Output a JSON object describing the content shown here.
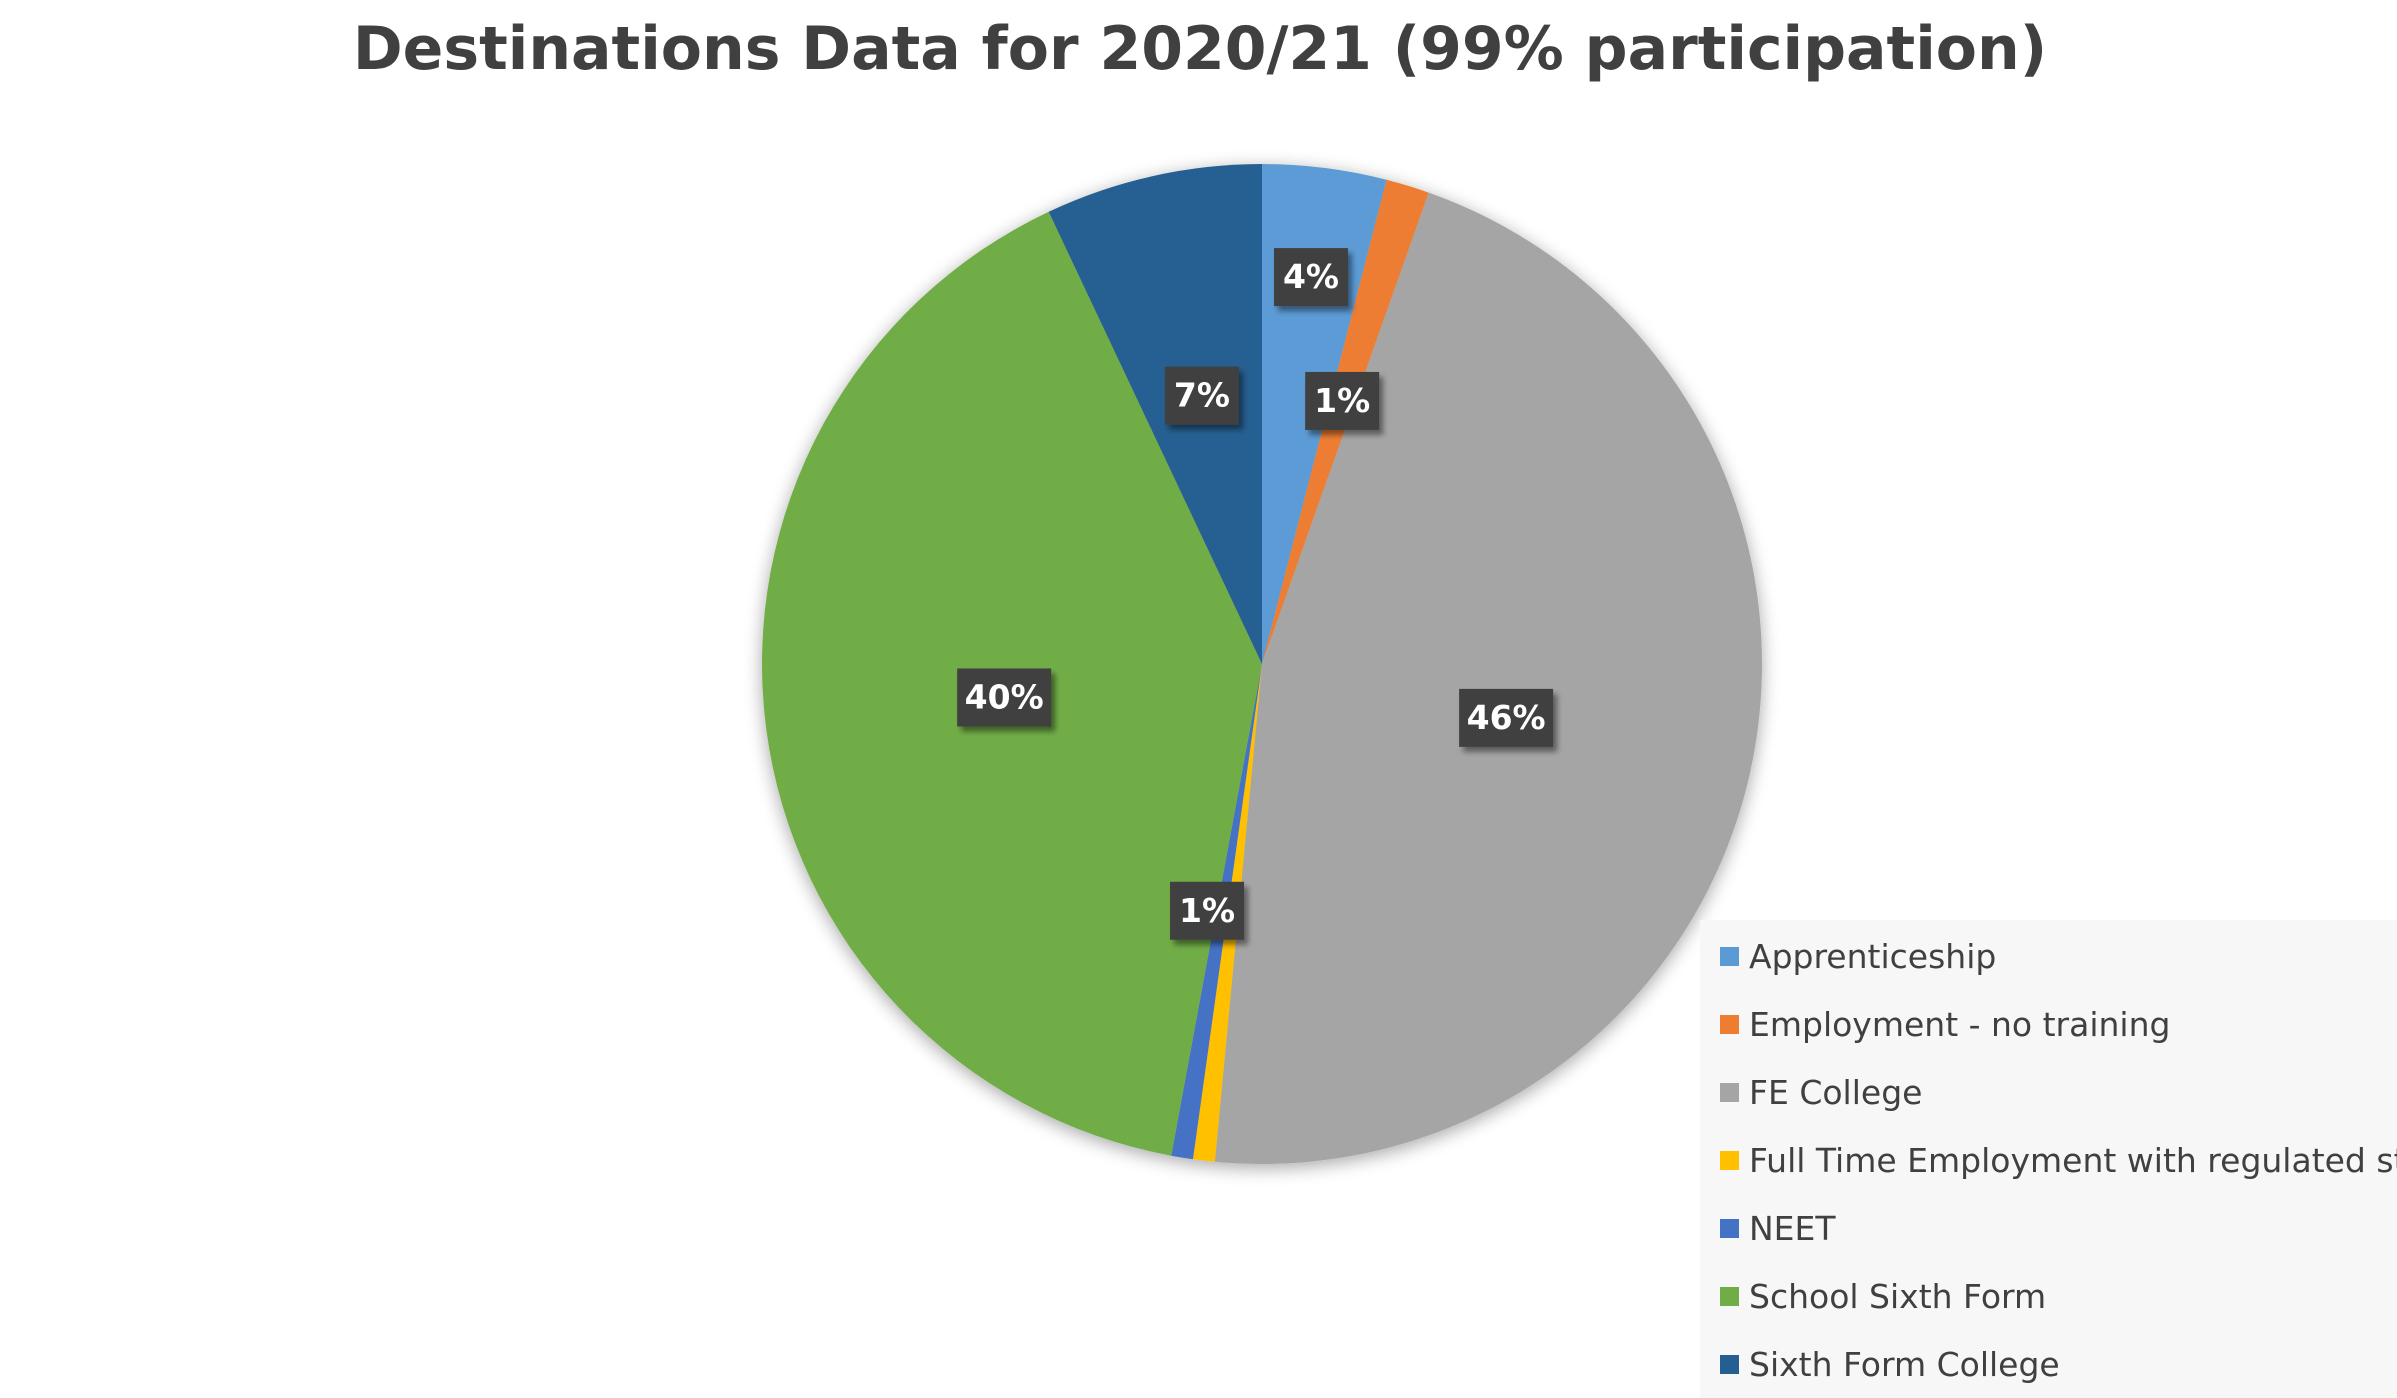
{
  "chart_data": {
    "type": "pie",
    "title": "Destinations Data for 2020/21 (99% participation)",
    "series": [
      {
        "name": "Apprenticeship",
        "value": 4,
        "label": "4%",
        "color": "#5b9bd5"
      },
      {
        "name": "Employment - no training",
        "value": 1.4,
        "label": "1%",
        "color": "#ed7d31"
      },
      {
        "name": "FE College",
        "value": 46,
        "label": "46%",
        "color": "#a5a5a5"
      },
      {
        "name": "Full Time Employment with regulated study",
        "value": 0.7,
        "label": "",
        "color": "#ffc000"
      },
      {
        "name": "NEET",
        "value": 0.7,
        "label": "1%",
        "color": "#4472c4"
      },
      {
        "name": "School Sixth Form",
        "value": 40,
        "label": "40%",
        "color": "#70ad47"
      },
      {
        "name": "Sixth Form College",
        "value": 7,
        "label": "7%",
        "color": "#255e91"
      }
    ],
    "legend_position": "bottom-right",
    "label_box_color": "#404040"
  }
}
